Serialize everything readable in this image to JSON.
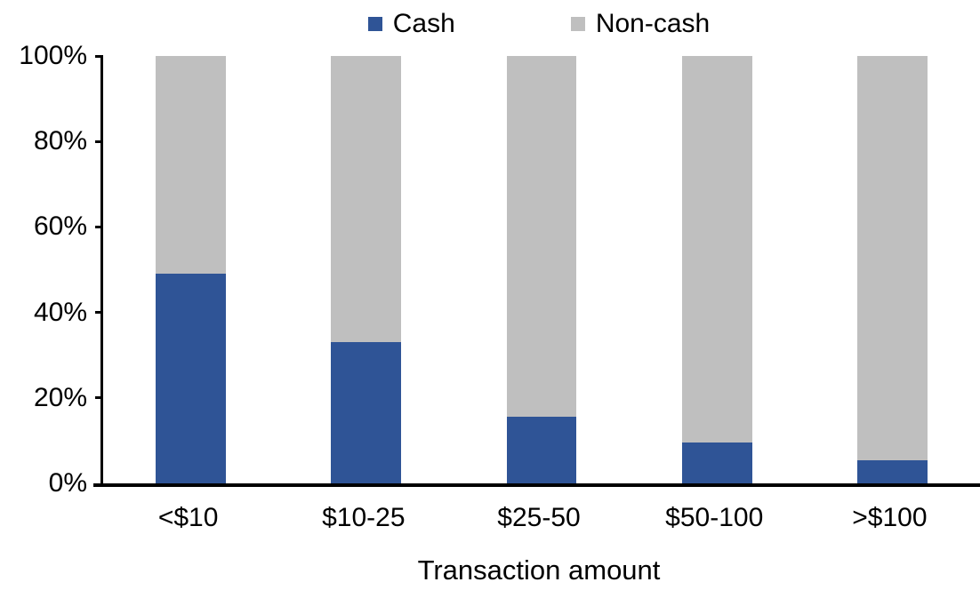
{
  "chart_data": {
    "type": "bar",
    "stacked": true,
    "percent_stacked": true,
    "title": "",
    "xlabel": "Transaction amount",
    "ylabel": "",
    "categories": [
      "<$10",
      "$10-25",
      "$25-50",
      "$50-100",
      ">$100"
    ],
    "series": [
      {
        "name": "Cash",
        "color": "#2F5496",
        "values": [
          49,
          33,
          15.5,
          9.5,
          5.5
        ]
      },
      {
        "name": "Non-cash",
        "color": "#BFBFBF",
        "values": [
          51,
          67,
          84.5,
          90.5,
          94.5
        ]
      }
    ],
    "y_ticks": [
      "0%",
      "20%",
      "40%",
      "60%",
      "80%",
      "100%"
    ],
    "ylim": [
      0,
      100
    ],
    "legend_position": "top",
    "grid": false,
    "axis_color": "#000000",
    "background_color": "#FFFFFF"
  }
}
